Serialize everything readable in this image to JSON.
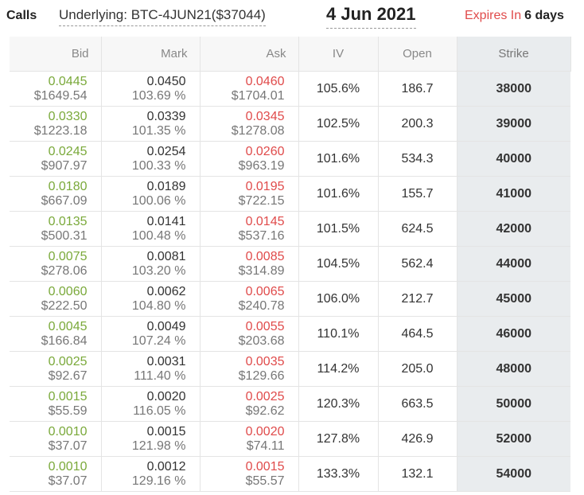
{
  "header": {
    "calls_label": "Calls",
    "underlying": "Underlying: BTC-4JUN21($37044)",
    "date": "4 Jun 2021",
    "expires_label": "Expires In",
    "expires_value": "6 days"
  },
  "columns": {
    "bid": "Bid",
    "mark": "Mark",
    "ask": "Ask",
    "iv": "IV",
    "open": "Open",
    "strike": "Strike"
  },
  "rows": [
    {
      "bid": "0.0445",
      "bid_usd": "$1649.54",
      "mark": "0.0450",
      "mark_pct": "103.69 %",
      "ask": "0.0460",
      "ask_usd": "$1704.01",
      "iv": "105.6%",
      "open": "186.7",
      "strike": "38000"
    },
    {
      "bid": "0.0330",
      "bid_usd": "$1223.18",
      "mark": "0.0339",
      "mark_pct": "101.35 %",
      "ask": "0.0345",
      "ask_usd": "$1278.08",
      "iv": "102.5%",
      "open": "200.3",
      "strike": "39000"
    },
    {
      "bid": "0.0245",
      "bid_usd": "$907.97",
      "mark": "0.0254",
      "mark_pct": "100.33 %",
      "ask": "0.0260",
      "ask_usd": "$963.19",
      "iv": "101.6%",
      "open": "534.3",
      "strike": "40000"
    },
    {
      "bid": "0.0180",
      "bid_usd": "$667.09",
      "mark": "0.0189",
      "mark_pct": "100.06 %",
      "ask": "0.0195",
      "ask_usd": "$722.15",
      "iv": "101.6%",
      "open": "155.7",
      "strike": "41000"
    },
    {
      "bid": "0.0135",
      "bid_usd": "$500.31",
      "mark": "0.0141",
      "mark_pct": "100.48 %",
      "ask": "0.0145",
      "ask_usd": "$537.16",
      "iv": "101.5%",
      "open": "624.5",
      "strike": "42000"
    },
    {
      "bid": "0.0075",
      "bid_usd": "$278.06",
      "mark": "0.0081",
      "mark_pct": "103.20 %",
      "ask": "0.0085",
      "ask_usd": "$314.89",
      "iv": "104.5%",
      "open": "562.4",
      "strike": "44000"
    },
    {
      "bid": "0.0060",
      "bid_usd": "$222.50",
      "mark": "0.0062",
      "mark_pct": "104.80 %",
      "ask": "0.0065",
      "ask_usd": "$240.78",
      "iv": "106.0%",
      "open": "212.7",
      "strike": "45000"
    },
    {
      "bid": "0.0045",
      "bid_usd": "$166.84",
      "mark": "0.0049",
      "mark_pct": "107.24 %",
      "ask": "0.0055",
      "ask_usd": "$203.68",
      "iv": "110.1%",
      "open": "464.5",
      "strike": "46000"
    },
    {
      "bid": "0.0025",
      "bid_usd": "$92.67",
      "mark": "0.0031",
      "mark_pct": "111.40 %",
      "ask": "0.0035",
      "ask_usd": "$129.66",
      "iv": "114.2%",
      "open": "205.0",
      "strike": "48000"
    },
    {
      "bid": "0.0015",
      "bid_usd": "$55.59",
      "mark": "0.0020",
      "mark_pct": "116.05 %",
      "ask": "0.0025",
      "ask_usd": "$92.62",
      "iv": "120.3%",
      "open": "663.5",
      "strike": "50000"
    },
    {
      "bid": "0.0010",
      "bid_usd": "$37.07",
      "mark": "0.0015",
      "mark_pct": "121.98 %",
      "ask": "0.0020",
      "ask_usd": "$74.11",
      "iv": "127.8%",
      "open": "426.9",
      "strike": "52000"
    },
    {
      "bid": "0.0010",
      "bid_usd": "$37.07",
      "mark": "0.0012",
      "mark_pct": "129.16 %",
      "ask": "0.0015",
      "ask_usd": "$55.57",
      "iv": "133.3%",
      "open": "132.1",
      "strike": "54000"
    }
  ],
  "colors": {
    "bid": "#7aa93a",
    "ask": "#e04b4b",
    "expires": "#e04b4b",
    "strike_bg": "#e9ecee"
  }
}
